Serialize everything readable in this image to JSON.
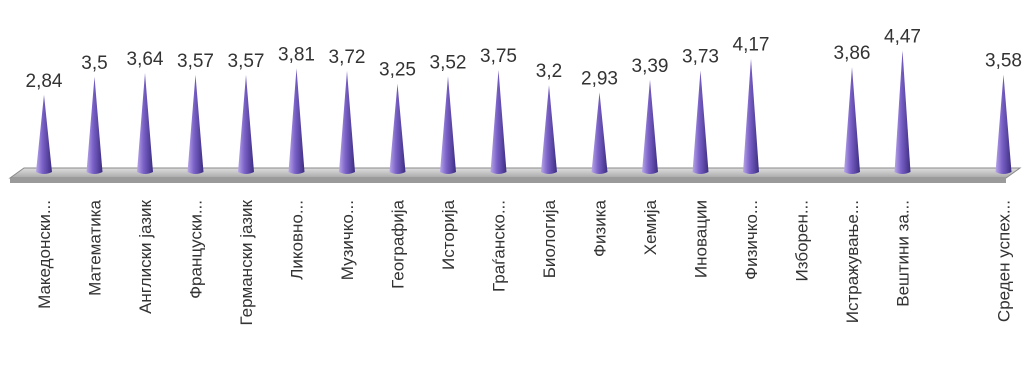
{
  "chart_data": {
    "type": "bar",
    "bar_shape": "cone",
    "categories": [
      "Македонски...",
      "Математика",
      "Англиски јазик",
      "Француски...",
      "Германски јазик",
      "Ликовно...",
      "Музичко...",
      "Географија",
      "Историја",
      "Граѓанско...",
      "Биологија",
      "Физика",
      "Хемија",
      "Иновации",
      "Физичко...",
      "Изборен...",
      "Истражување...",
      "Вештини за...",
      "",
      "Среден успех..."
    ],
    "values": [
      2.84,
      3.5,
      3.64,
      3.57,
      3.57,
      3.81,
      3.72,
      3.25,
      3.52,
      3.75,
      3.2,
      2.93,
      3.39,
      3.73,
      4.17,
      null,
      3.86,
      4.47,
      null,
      3.58
    ],
    "value_labels": [
      "2,84",
      "3,5",
      "3,64",
      "3,57",
      "3,57",
      "3,81",
      "3,72",
      "3,25",
      "3,52",
      "3,75",
      "3,2",
      "2,93",
      "3,39",
      "3,73",
      "4,17",
      "",
      "3,86",
      "4,47",
      "",
      "3,58"
    ],
    "title": "",
    "xlabel": "",
    "ylabel": "",
    "ylim": [
      0,
      4.5
    ],
    "grid": false,
    "legend": "none",
    "colors": {
      "cone_light": "#b8a6e8",
      "cone_mid": "#7b62c8",
      "cone_dark": "#3d2d82",
      "floor": "#c4c4c4",
      "floor_edge": "#8a8a8a",
      "text": "#333333"
    }
  }
}
